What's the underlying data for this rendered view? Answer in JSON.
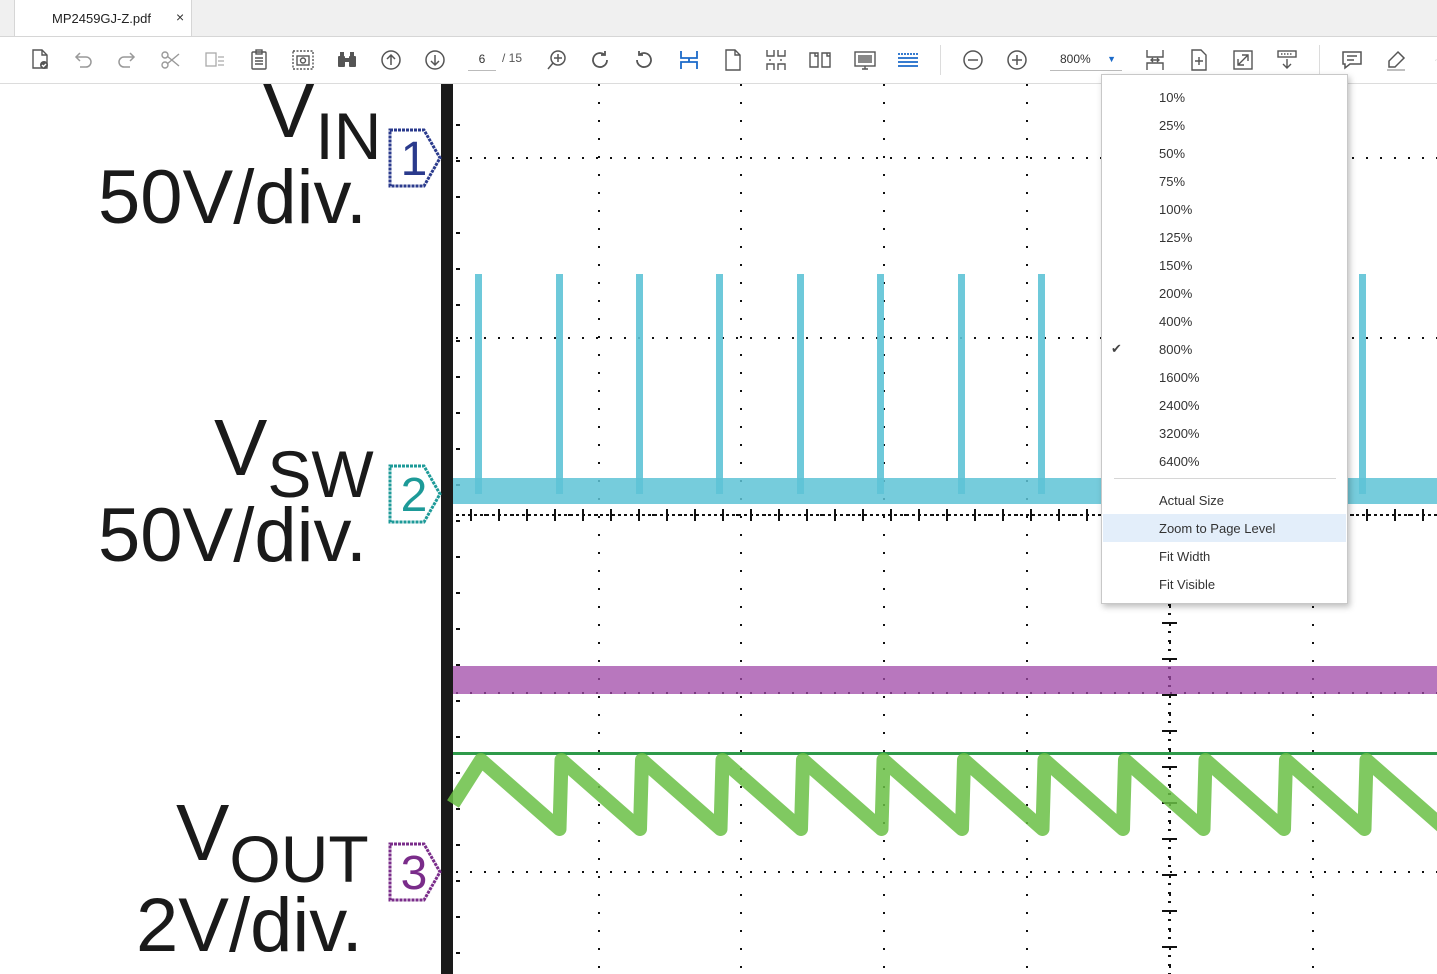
{
  "window": {
    "tab_title": "MP2459GJ-Z.pdf",
    "close_symbol": "×"
  },
  "toolbar": {
    "page_current": "6",
    "page_total": "/ 15",
    "zoom_value": "800%",
    "icons": [
      "file-check-icon",
      "undo-icon",
      "redo-icon",
      "cut-icon",
      "copy-icon",
      "paste-icon",
      "snapshot-icon",
      "find-icon",
      "prev-page-icon",
      "next-page-icon",
      "zoom-marquee-icon",
      "rotate-cw-icon",
      "rotate-ccw-icon",
      "select-icon",
      "single-page-icon",
      "continuous-icon",
      "facing-icon",
      "presentation-icon",
      "reflow-icon",
      "zoom-out-icon",
      "zoom-in-icon",
      "fit-page-icon",
      "fit-width-icon",
      "fullscreen-icon",
      "fit-visible-icon",
      "comment-icon",
      "highlight-icon"
    ]
  },
  "document": {
    "vin_label": "V",
    "vin_sub": "IN",
    "vin_scale": "50V/div.",
    "vsw_label": "V",
    "vsw_sub": "SW",
    "vsw_scale": "50V/div.",
    "vout_label": "V",
    "vout_sub": "OUT",
    "vout_scale": "2V/div.",
    "ch1": "1",
    "ch2": "2",
    "ch3": "3",
    "colors": {
      "vsw": "#5ec3d6",
      "il": "#a04aa8",
      "vout": "#6abf45",
      "ref": "#2e9a4a",
      "ch1": "#2a3a8c",
      "ch2": "#1d9a98",
      "ch3": "#7a2c8a"
    }
  },
  "zoom_menu": {
    "items": [
      "10%",
      "25%",
      "50%",
      "75%",
      "100%",
      "125%",
      "150%",
      "200%",
      "400%",
      "800%",
      "1600%",
      "2400%",
      "3200%",
      "6400%"
    ],
    "selected": "800%",
    "check": "✔",
    "actions": [
      "Actual Size",
      "Zoom to Page Level",
      "Fit Width",
      "Fit Visible"
    ],
    "highlighted": "Zoom to Page Level"
  }
}
